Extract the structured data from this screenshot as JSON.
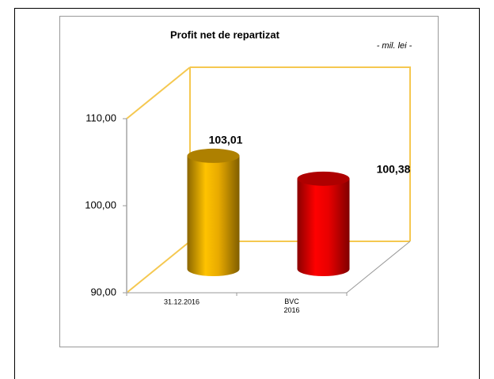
{
  "chart_data": {
    "type": "bar3d",
    "title": "Profit net de repartizat",
    "subtitle": "- mil. lei -",
    "categories": [
      "31.12.2016",
      "BVC 2016"
    ],
    "values": [
      103.01,
      100.38
    ],
    "value_labels": [
      "103,01",
      "100,38"
    ],
    "colors": [
      "#e8aa00",
      "#e80000"
    ],
    "ylim": [
      90,
      110
    ],
    "yticks": [
      {
        "value": 90,
        "label": "90,00"
      },
      {
        "value": 100,
        "label": "100,00"
      },
      {
        "value": 110,
        "label": "110,00"
      }
    ],
    "wall_color": "#f5c850"
  }
}
